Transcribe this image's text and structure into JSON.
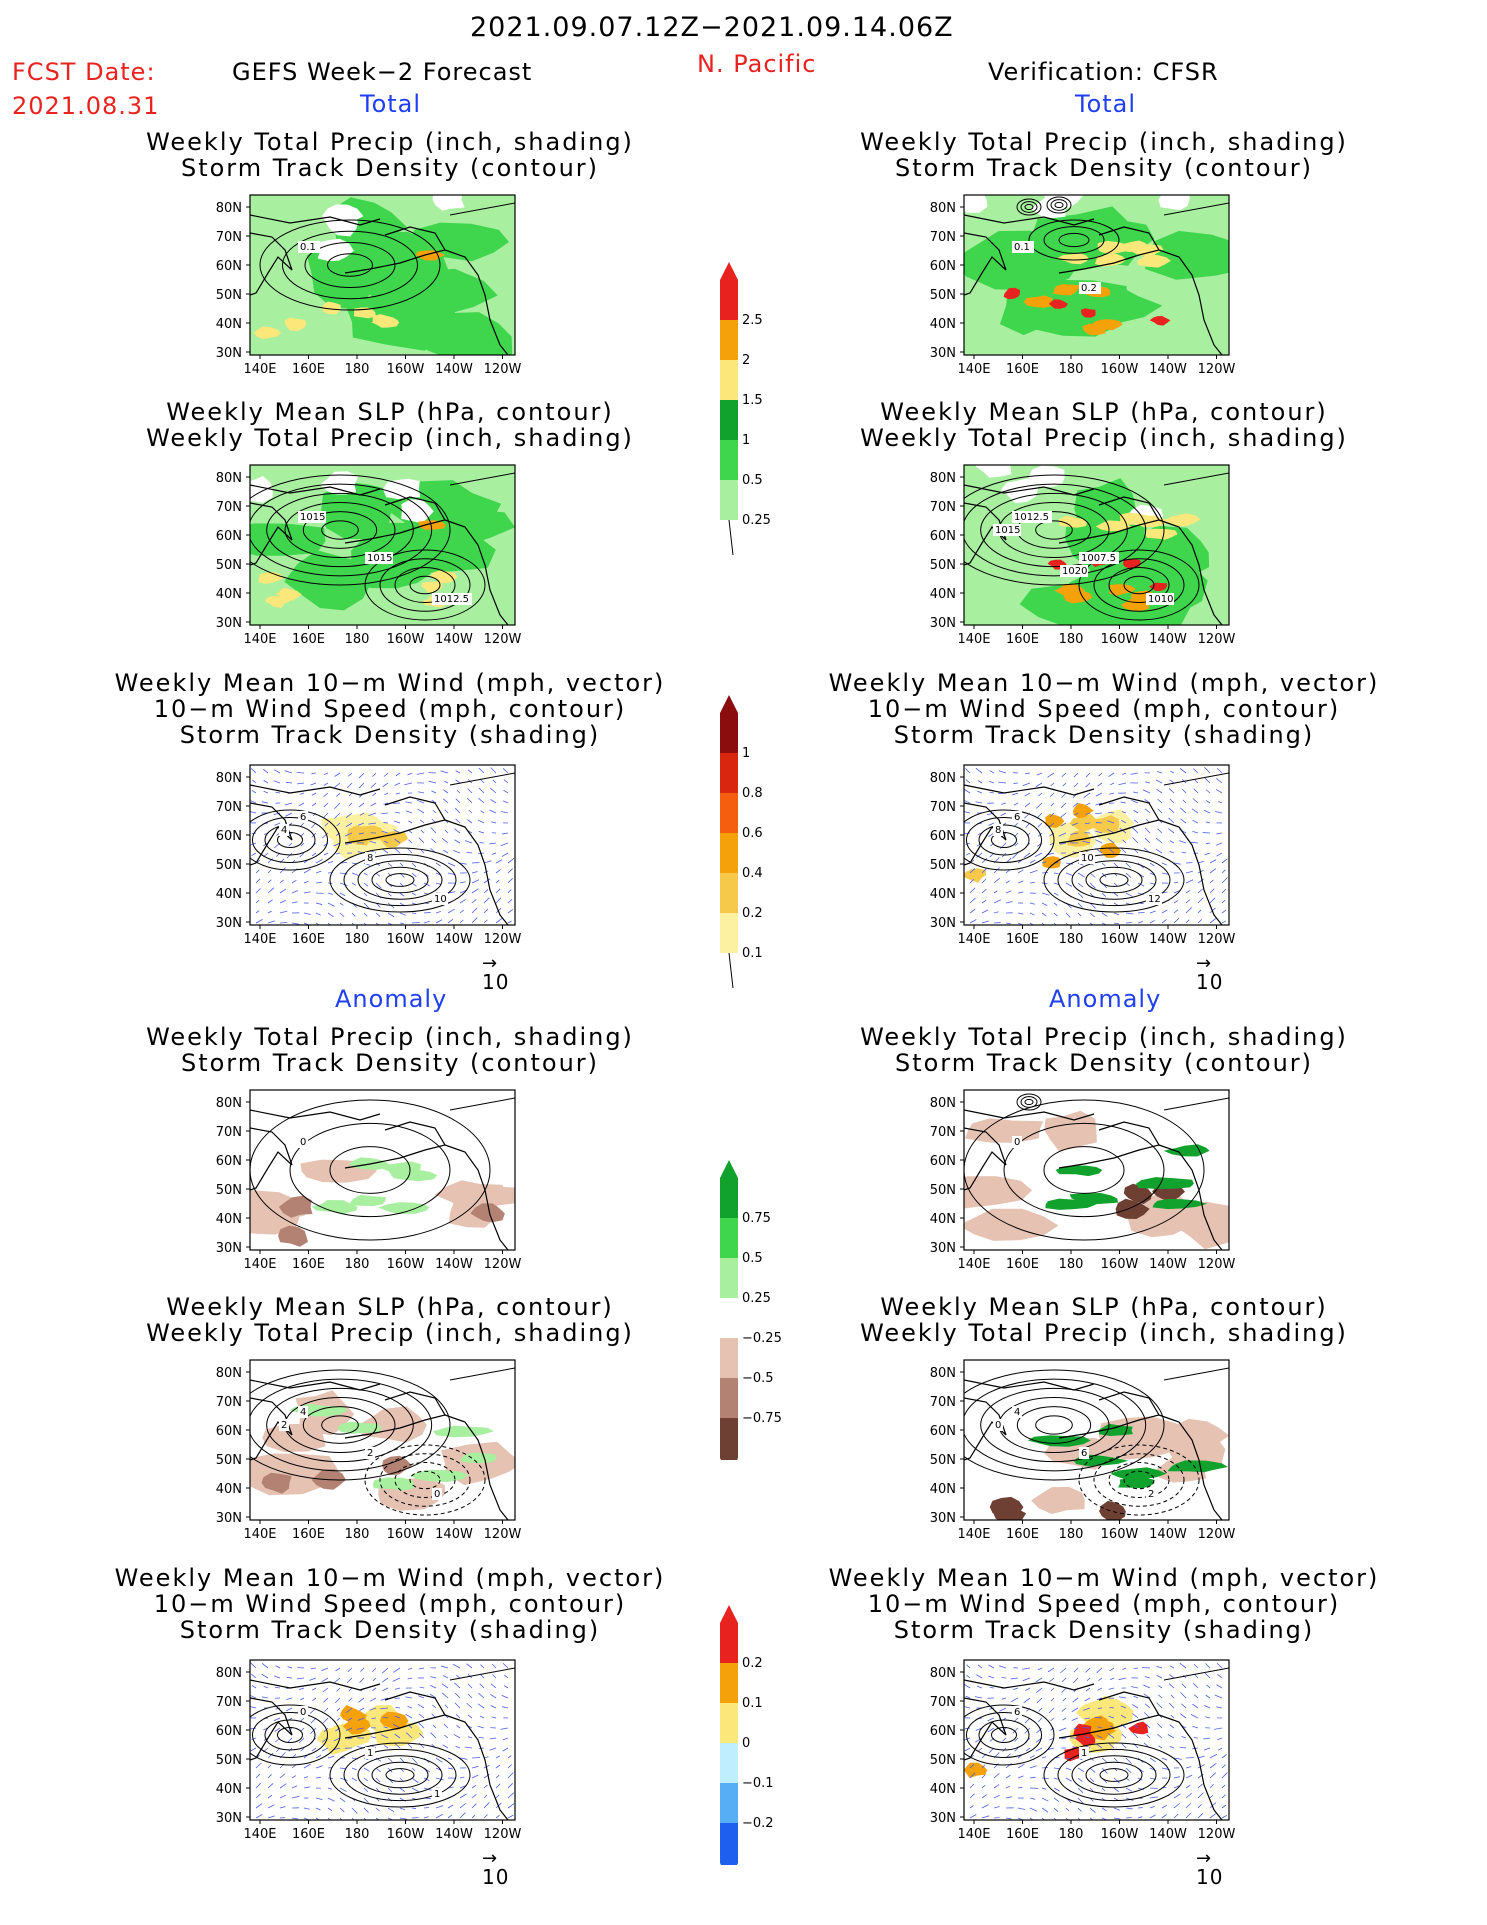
{
  "header": {
    "date_range": "2021.09.07.12Z−2021.09.14.06Z",
    "fcst_label": "FCST Date:",
    "fcst_date": "2021.08.31",
    "left_title": "GEFS Week−2 Forecast",
    "region": "N. Pacific",
    "right_title": "Verification: CFSR"
  },
  "sections": {
    "total": "Total",
    "anomaly": "Anomaly"
  },
  "panel_titles": {
    "precip_storm": [
      "Weekly Total Precip (inch, shading)",
      "Storm Track Density (contour)"
    ],
    "slp_precip": [
      "Weekly Mean SLP (hPa, contour)",
      "Weekly Total Precip (inch, shading)"
    ],
    "wind_storm": [
      "Weekly Mean 10−m Wind (mph, vector)",
      "10−m Wind Speed (mph, contour)",
      "Storm Track Density (shading)"
    ]
  },
  "axes": {
    "lat_ticks": [
      "80N",
      "70N",
      "60N",
      "50N",
      "40N",
      "30N"
    ],
    "lon_ticks": [
      "140E",
      "160E",
      "180",
      "160W",
      "140W",
      "120W"
    ]
  },
  "vector_ref": "10",
  "contour_labels": {
    "fc_total_precip": [
      "0.1"
    ],
    "obs_total_precip": [
      "0.1",
      "0.2"
    ],
    "fc_total_slp": [
      "1015",
      "1015",
      "1012.5"
    ],
    "obs_total_slp": [
      "1012.5",
      "1007.5",
      "1010",
      "1015",
      "1020"
    ],
    "fc_total_wind": [
      "6",
      "8",
      "10",
      "4"
    ],
    "obs_total_wind": [
      "6",
      "10",
      "12",
      "8"
    ],
    "fc_anom_precip": [
      "0"
    ],
    "obs_anom_precip": [
      "0"
    ],
    "fc_anom_slp": [
      "4",
      "2",
      "0",
      "2"
    ],
    "obs_anom_slp": [
      "4",
      "6",
      "2",
      "0"
    ],
    "fc_anom_wind": [
      "0",
      "1",
      "1"
    ],
    "obs_anom_wind": [
      "6",
      "1"
    ]
  },
  "colorbars": {
    "total_precip": {
      "labels": [
        "2.5",
        "2",
        "1.5",
        "1",
        "0.5",
        "0.25"
      ],
      "colors": [
        "#e8231f",
        "#f5a10a",
        "#fbe77a",
        "#11a22e",
        "#3fd64d",
        "#a8efa0"
      ]
    },
    "total_storm": {
      "labels": [
        "1",
        "0.8",
        "0.6",
        "0.4",
        "0.2",
        "0.1"
      ],
      "colors": [
        "#8b0d0d",
        "#d9260f",
        "#f55d0f",
        "#f5a10a",
        "#f7c94a",
        "#fbf1a0"
      ]
    },
    "anom_precip": {
      "labels": [
        "0.75",
        "0.5",
        "0.25",
        "−0.25",
        "−0.5",
        "−0.75"
      ],
      "colors": [
        "#11a22e",
        "#3fd64d",
        "#a8efa0",
        "#ffffff",
        "#e6c2b3",
        "#b38273",
        "#6e4034"
      ]
    },
    "anom_storm": {
      "labels": [
        "0.2",
        "0.1",
        "0",
        "−0.1",
        "−0.2"
      ],
      "colors": [
        "#e8231f",
        "#f5a10a",
        "#fbe77a",
        "#bfefff",
        "#58aef5",
        "#1f5ff0"
      ]
    }
  }
}
